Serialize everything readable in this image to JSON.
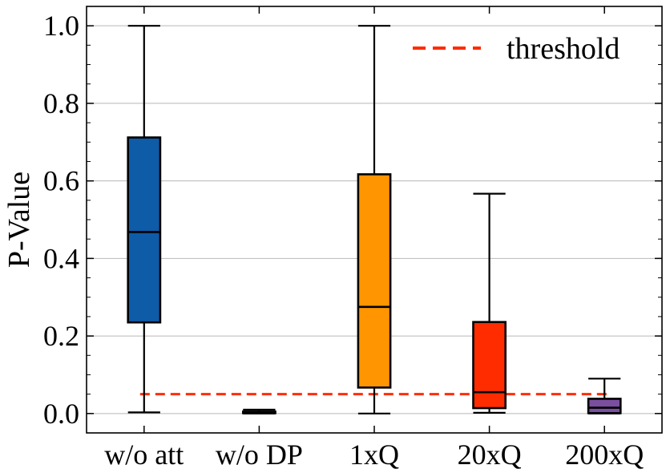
{
  "chart_data": {
    "type": "box",
    "ylabel": "P-Value",
    "ylim": [
      -0.05,
      1.05
    ],
    "y_ticks": [
      "0.0",
      "0.2",
      "0.4",
      "0.6",
      "0.8",
      "1.0"
    ],
    "grid": "horizontal",
    "categories": [
      "w/o att",
      "w/o DP",
      "1xQ",
      "20xQ",
      "200xQ"
    ],
    "boxes": [
      {
        "category": "w/o att",
        "min": 0.003,
        "q1": 0.235,
        "median": 0.468,
        "q3": 0.712,
        "max": 1.0,
        "color": "#0e5ba8"
      },
      {
        "category": "w/o DP",
        "min": 0.0,
        "q1": 0.001,
        "median": 0.003,
        "q3": 0.005,
        "max": 0.01,
        "color": "#0e5ba8"
      },
      {
        "category": "1xQ",
        "min": 0.0,
        "q1": 0.067,
        "median": 0.275,
        "q3": 0.617,
        "max": 1.0,
        "color": "#ff9500"
      },
      {
        "category": "20xQ",
        "min": 0.002,
        "q1": 0.014,
        "median": 0.055,
        "q3": 0.236,
        "max": 0.567,
        "color": "#ff2c00"
      },
      {
        "category": "200xQ",
        "min": 0.0,
        "q1": 0.001,
        "median": 0.015,
        "q3": 0.038,
        "max": 0.09,
        "color": "#7b4fa0"
      }
    ],
    "threshold": {
      "value": 0.05,
      "label": "threshold",
      "color": "#ff2c00"
    },
    "legend": {
      "position": "top-right",
      "entries": [
        "threshold"
      ]
    }
  }
}
